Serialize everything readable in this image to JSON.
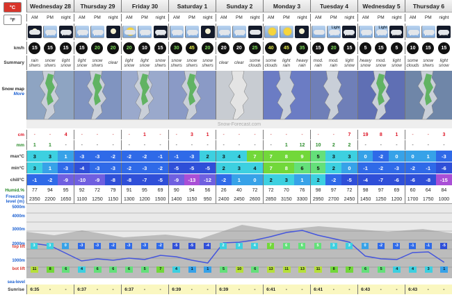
{
  "units": {
    "celsius": "°C",
    "fahrenheit": "°F"
  },
  "days": [
    "Wednesday 28",
    "Thursday 29",
    "Friday 30",
    "Saturday 1",
    "Sunday 2",
    "Monday 3",
    "Tuesday 4",
    "Wednesday 5",
    "Thursday 6"
  ],
  "periods": [
    "AM",
    "PM",
    "night"
  ],
  "row_labels": {
    "wind": "km/h",
    "summary": "Summary",
    "snowmap": "Snow map",
    "snowmap_more": "More",
    "snow": "cm",
    "rain": "mm",
    "max": "max°C",
    "min": "min°C",
    "chill": "chill°C",
    "humid": "Humid.%",
    "freezing": "Freezing level (m)",
    "alt5000": "5000m",
    "alt4000": "4000m",
    "alt3000": "3000m",
    "alt2000": "2000m",
    "alt1000": "1000m",
    "top_lift": "top lift",
    "bot_lift": "bot lift",
    "sea_level": "sea-level",
    "sunrise": "Sunrise"
  },
  "map_credit": "Snow-Forecast.com",
  "icons": [
    "cloud-moon",
    "cloud-snow",
    "night-snow",
    "cloud-snow",
    "cloud-snow",
    "moon",
    "cloud-sun",
    "cloud-snow",
    "night-snow",
    "cloud-snow",
    "cloud-snow",
    "moon",
    "cloud-snow",
    "cloud-snow",
    "night-cloud",
    "sun",
    "sun",
    "moon",
    "light-cloud",
    "light-rain",
    "night-rain",
    "cloud-snow",
    "cloud-snow",
    "night-snow",
    "cloud-snow",
    "cloud-snow",
    "night-snow"
  ],
  "icon_texts": [
    "",
    "",
    "",
    "",
    "",
    "",
    "",
    "",
    "",
    "",
    "",
    "",
    "",
    "",
    "",
    "",
    "",
    "",
    "",
    "Light",
    "",
    "",
    "Light",
    "",
    "",
    "",
    ""
  ],
  "wind": [
    "15",
    "15",
    "15",
    "15",
    "20",
    "20",
    "20",
    "10",
    "15",
    "30",
    "45",
    "20",
    "20",
    "20",
    "25",
    "40",
    "45",
    "35",
    "15",
    "20",
    "15",
    "5",
    "15",
    "5",
    "10",
    "15",
    "15"
  ],
  "wind_color": [
    "w",
    "w",
    "w",
    "w",
    "g",
    "g",
    "g",
    "w",
    "w",
    "g",
    "y",
    "g",
    "w",
    "w",
    "g",
    "y",
    "y",
    "g",
    "w",
    "g",
    "w",
    "w",
    "w",
    "w",
    "w",
    "w",
    "w"
  ],
  "summary": [
    "rain shwrs",
    "snow shwrs",
    "light snow",
    "light snow",
    "snow shwrs",
    "clear",
    "light snow",
    "light snow",
    "snow shwrs",
    "snow shwrs",
    "snow shwrs",
    "snow shwrs",
    "clear",
    "clear",
    "some clouds",
    "some clouds",
    "light rain",
    "heavy rain",
    "mod. rain",
    "mod. rain",
    "light snow",
    "heavy snow",
    "mod. snow",
    "light snow",
    "some clouds",
    "snow shwrs",
    "light snow"
  ],
  "snow": [
    "-",
    "-",
    "4",
    "-",
    "-",
    "-",
    "-",
    "1",
    "-",
    "-",
    "3",
    "1",
    "-",
    "-",
    "-",
    "-",
    "-",
    "-",
    "-",
    "-",
    "7",
    "19",
    "8",
    "1",
    "-",
    "-",
    "3"
  ],
  "rain": [
    "1",
    "1",
    "-",
    "-",
    "-",
    "-",
    "-",
    "-",
    "-",
    "-",
    "-",
    "-",
    "-",
    "-",
    "-",
    "-",
    "1",
    "12",
    "10",
    "2",
    "2",
    "-",
    "-",
    "-",
    "-",
    "-",
    "-"
  ],
  "max": [
    "3",
    "3",
    "1",
    "-3",
    "-3",
    "-2",
    "-2",
    "-2",
    "-1",
    "-1",
    "-3",
    "2",
    "3",
    "4",
    "7",
    "7",
    "8",
    "9",
    "5",
    "3",
    "3",
    "0",
    "-2",
    "0",
    "0",
    "1",
    "-3"
  ],
  "min": [
    "3",
    "1",
    "-3",
    "-4",
    "-3",
    "-3",
    "-2",
    "-3",
    "-2",
    "-5",
    "-5",
    "-5",
    "2",
    "3",
    "4",
    "7",
    "8",
    "6",
    "5",
    "2",
    "0",
    "-1",
    "-2",
    "-3",
    "-2",
    "-1",
    "-6"
  ],
  "chill": [
    "-1",
    "-2",
    "-9",
    "-10",
    "-9",
    "-8",
    "-8",
    "-7",
    "-5",
    "-9",
    "-13",
    "-12",
    "-2",
    "1",
    "0",
    "2",
    "3",
    "1",
    "2",
    "-2",
    "-5",
    "-4",
    "-7",
    "-6",
    "-6",
    "-8",
    "-15"
  ],
  "humid": [
    "77",
    "94",
    "95",
    "92",
    "72",
    "79",
    "91",
    "95",
    "69",
    "90",
    "94",
    "56",
    "26",
    "40",
    "72",
    "72",
    "70",
    "76",
    "98",
    "97",
    "72",
    "98",
    "97",
    "69",
    "60",
    "64",
    "84"
  ],
  "freezing": [
    "2350",
    "2200",
    "1650",
    "1100",
    "1250",
    "1150",
    "1300",
    "1200",
    "1500",
    "1400",
    "1150",
    "950",
    "2400",
    "2450",
    "2600",
    "2850",
    "3150",
    "3300",
    "2950",
    "2700",
    "2450",
    "1450",
    "1250",
    "1200",
    "1700",
    "1750",
    "1000"
  ],
  "top_lift_temps": [
    "3",
    "3",
    "0",
    "-3",
    "-3",
    "-2",
    "-3",
    "-3",
    "-2",
    "-5",
    "-5",
    "-4",
    "2",
    "3",
    "4",
    "7",
    "6",
    "6",
    "5",
    "3",
    "3",
    "0",
    "-2",
    "-3",
    "-1",
    "-1",
    "-5"
  ],
  "bot_lift_temps": [
    "11",
    "8",
    "6",
    "4",
    "6",
    "6",
    "6",
    "5",
    "7",
    "4",
    "1",
    "1",
    "5",
    "10",
    "6",
    "13",
    "11",
    "13",
    "11",
    "8",
    "7",
    "6",
    "5",
    "4",
    "4",
    "3",
    "1"
  ],
  "sunrise": [
    "6:35",
    "-",
    "-",
    "6:37",
    "-",
    "-",
    "6:37",
    "-",
    "-",
    "6:39",
    "-",
    "-",
    "6:39",
    "-",
    "-",
    "6:41",
    "-",
    "-",
    "6:41",
    "-",
    "-",
    "6:43",
    "-",
    "-",
    "6:43",
    "-",
    "-"
  ],
  "colors": {
    "accent": "#d8352b",
    "link": "#1a5fd1",
    "freezing_line": "#4455dd"
  }
}
